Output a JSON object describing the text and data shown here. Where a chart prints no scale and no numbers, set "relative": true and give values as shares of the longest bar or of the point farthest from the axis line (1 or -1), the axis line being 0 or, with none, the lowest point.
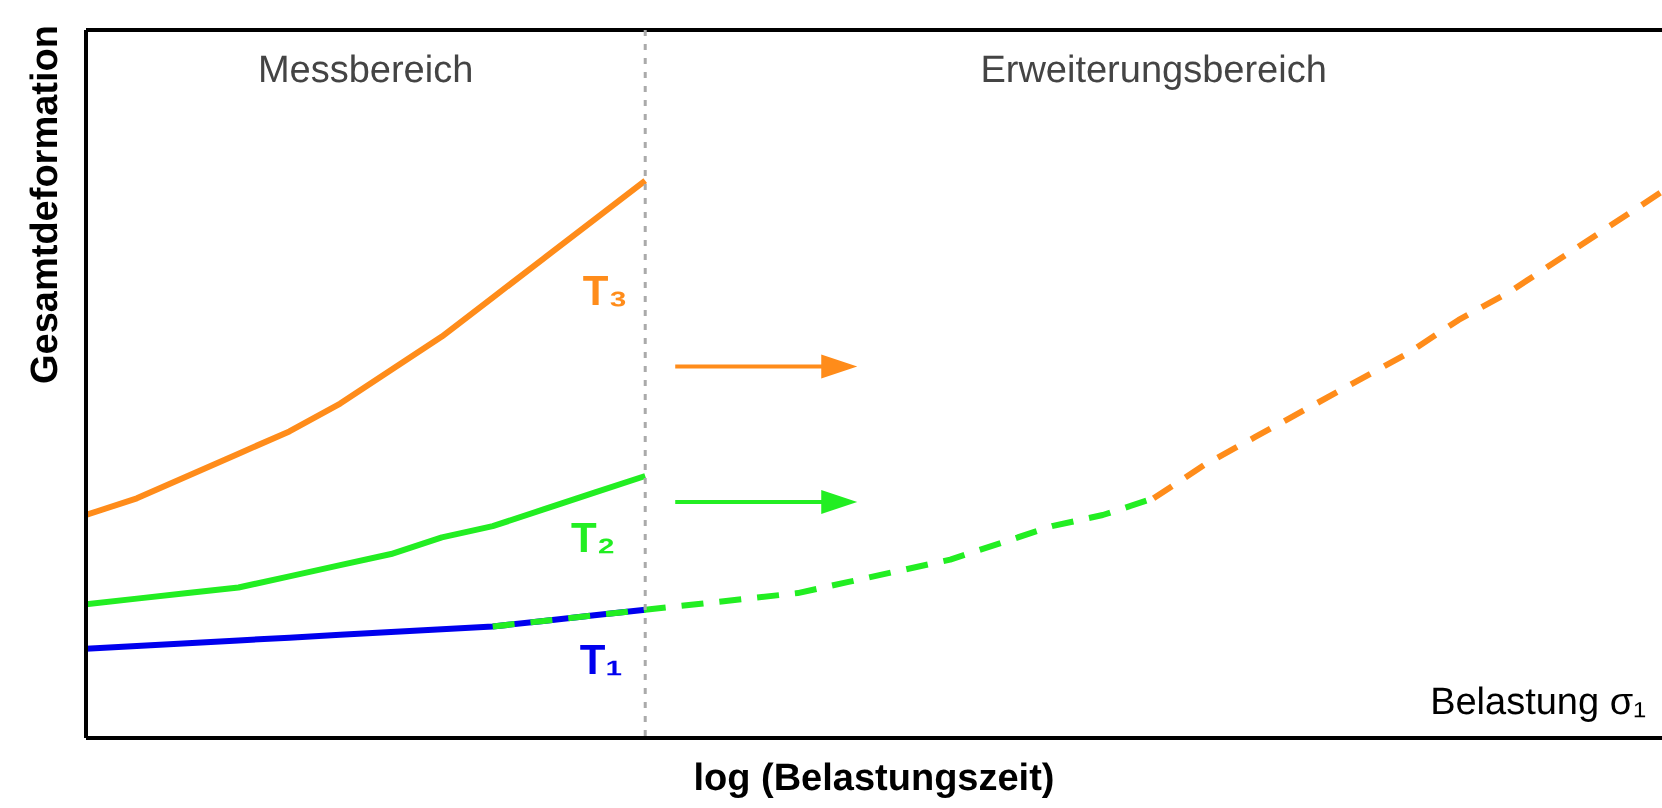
{
  "chart_data": {
    "type": "line",
    "relative": true,
    "ylabel": "Gesamtdeformation",
    "xlabel": "log (Belastungszeit)",
    "categories": [
      null,
      null,
      null,
      null,
      null,
      null,
      null,
      null,
      null,
      null,
      null,
      null,
      null,
      null,
      null,
      null,
      null,
      null,
      null,
      null,
      null,
      null,
      null,
      null,
      null,
      null,
      null,
      null,
      null,
      null,
      null,
      null
    ],
    "tick_labels": false,
    "legend": false,
    "marker": "none",
    "annotations": [
      "Messbereich",
      "Erweiterungsbereich",
      "Belastung σ₁"
    ],
    "series": [
      {
        "name": "T₁",
        "color": "#0000ee",
        "line_style": "solid",
        "values": [
          0.16,
          0.165,
          0.17,
          0.175,
          0.18,
          0.185,
          0.19,
          0.195,
          0.2,
          0.21,
          0.22,
          0.23,
          null,
          null,
          null,
          null,
          null,
          null,
          null,
          null,
          null,
          null,
          null,
          null,
          null,
          null,
          null,
          null,
          null,
          null,
          null,
          null
        ]
      },
      {
        "name": "T₂",
        "color": "#22ee22",
        "line_style": "solid",
        "values": [
          0.24,
          0.25,
          0.26,
          0.27,
          0.29,
          0.31,
          0.33,
          0.36,
          0.38,
          0.41,
          0.44,
          0.47,
          null,
          null,
          null,
          null,
          null,
          null,
          null,
          null,
          null,
          null,
          null,
          null,
          null,
          null,
          null,
          null,
          null,
          null,
          null,
          null
        ]
      },
      {
        "name": "T₃",
        "color": "#ff8c1a",
        "line_style": "solid",
        "values": [
          0.4,
          0.43,
          0.47,
          0.51,
          0.55,
          0.6,
          0.66,
          0.72,
          0.79,
          0.86,
          0.93,
          1,
          null,
          null,
          null,
          null,
          null,
          null,
          null,
          null,
          null,
          null,
          null,
          null,
          null,
          null,
          null,
          null,
          null,
          null,
          null,
          null
        ]
      },
      {
        "color": "#22ee22",
        "line_style": "dashed",
        "values": [
          null,
          null,
          null,
          null,
          null,
          null,
          null,
          null,
          0.2,
          0.21,
          0.22,
          0.23,
          0.24,
          0.25,
          0.26,
          0.28,
          0.3,
          0.32,
          0.35,
          0.38,
          0.4,
          0.43,
          null,
          null,
          null,
          null,
          null,
          null,
          null,
          null,
          null,
          null
        ]
      },
      {
        "color": "#ff8c1a",
        "line_style": "dashed",
        "values": [
          null,
          null,
          null,
          null,
          null,
          null,
          null,
          null,
          null,
          null,
          null,
          null,
          null,
          null,
          null,
          null,
          null,
          null,
          null,
          null,
          null,
          0.43,
          0.49,
          0.54,
          0.59,
          0.64,
          0.69,
          0.75,
          0.8,
          0.86,
          0.92,
          0.98
        ]
      }
    ]
  }
}
